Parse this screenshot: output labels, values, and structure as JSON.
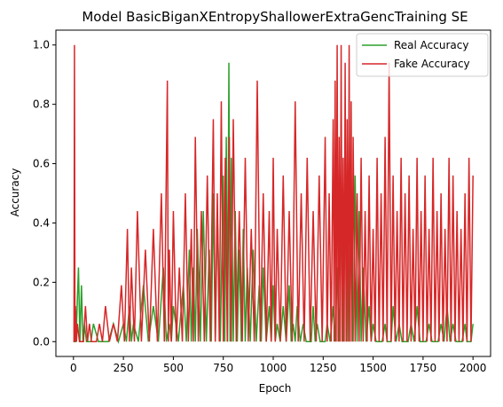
{
  "chart_data": {
    "type": "line",
    "title": "Model BasicBiganXEntropyShallowerExtraGencTraining SE",
    "xlabel": "Epoch",
    "ylabel": "Accuracy",
    "xlim": [
      -88,
      2088
    ],
    "ylim": [
      -0.05,
      1.05
    ],
    "xticks": [
      0,
      250,
      500,
      750,
      1000,
      1250,
      1500,
      1750,
      2000
    ],
    "yticks": [
      0.0,
      0.2,
      0.4,
      0.6,
      0.8,
      1.0
    ],
    "xtick_labels": [
      "0",
      "250",
      "500",
      "750",
      "1000",
      "1250",
      "1500",
      "1750",
      "2000"
    ],
    "ytick_labels": [
      "0.0",
      "0.2",
      "0.4",
      "0.6",
      "0.8",
      "1.0"
    ],
    "grid": false,
    "legend_position": "top-right",
    "series": [
      {
        "name": "Real Accuracy",
        "color": "#2ca02c",
        "x": [
          0,
          25,
          40,
          55,
          75,
          100,
          150,
          200,
          250,
          280,
          300,
          350,
          400,
          450,
          480,
          500,
          550,
          580,
          600,
          620,
          650,
          680,
          700,
          720,
          750,
          765,
          778,
          790,
          810,
          830,
          850,
          870,
          900,
          930,
          950,
          980,
          1000,
          1020,
          1050,
          1080,
          1100,
          1120,
          1150,
          1180,
          1200,
          1220,
          1250,
          1270,
          1300,
          1320,
          1340,
          1360,
          1375,
          1390,
          1410,
          1430,
          1450,
          1480,
          1500,
          1530,
          1560,
          1580,
          1600,
          1630,
          1660,
          1690,
          1720,
          1750,
          1780,
          1810,
          1840,
          1870,
          1900,
          1930,
          1960,
          1980,
          2000
        ],
        "y": [
          0.0,
          0.25,
          0.19,
          0.06,
          0.0,
          0.06,
          0.0,
          0.06,
          0.06,
          0.12,
          0.06,
          0.19,
          0.12,
          0.25,
          0.06,
          0.12,
          0.19,
          0.31,
          0.25,
          0.38,
          0.44,
          0.31,
          0.5,
          0.44,
          0.56,
          0.69,
          0.94,
          0.62,
          0.44,
          0.31,
          0.38,
          0.25,
          0.31,
          0.19,
          0.25,
          0.12,
          0.19,
          0.06,
          0.12,
          0.19,
          0.06,
          0.12,
          0.06,
          0.0,
          0.12,
          0.06,
          0.0,
          0.06,
          0.12,
          0.25,
          0.44,
          0.62,
          0.5,
          0.38,
          0.56,
          0.44,
          0.25,
          0.12,
          0.06,
          0.0,
          0.06,
          0.0,
          0.12,
          0.06,
          0.0,
          0.06,
          0.12,
          0.0,
          0.06,
          0.0,
          0.06,
          0.12,
          0.06,
          0.0,
          0.06,
          0.0,
          0.06
        ]
      },
      {
        "name": "Fake Accuracy",
        "color": "#d62728",
        "x": [
          0,
          5,
          10,
          20,
          40,
          60,
          80,
          100,
          130,
          160,
          200,
          240,
          270,
          290,
          320,
          360,
          400,
          440,
          470,
          480,
          500,
          530,
          560,
          590,
          610,
          640,
          670,
          700,
          720,
          740,
          760,
          780,
          800,
          830,
          860,
          890,
          920,
          950,
          980,
          1000,
          1020,
          1050,
          1080,
          1110,
          1140,
          1170,
          1200,
          1230,
          1260,
          1280,
          1300,
          1310,
          1320,
          1330,
          1340,
          1350,
          1360,
          1370,
          1380,
          1390,
          1400,
          1420,
          1440,
          1460,
          1480,
          1500,
          1520,
          1540,
          1560,
          1580,
          1600,
          1620,
          1640,
          1660,
          1680,
          1700,
          1720,
          1740,
          1760,
          1780,
          1800,
          1820,
          1840,
          1860,
          1880,
          1900,
          1920,
          1940,
          1960,
          1980,
          2000
        ],
        "y": [
          0.0,
          1.0,
          0.12,
          0.06,
          0.0,
          0.12,
          0.06,
          0.0,
          0.06,
          0.12,
          0.06,
          0.19,
          0.38,
          0.25,
          0.44,
          0.31,
          0.38,
          0.5,
          0.88,
          0.31,
          0.44,
          0.25,
          0.5,
          0.38,
          0.69,
          0.44,
          0.56,
          0.75,
          0.5,
          0.81,
          0.62,
          0.69,
          0.75,
          0.44,
          0.62,
          0.38,
          0.88,
          0.5,
          0.44,
          0.62,
          0.38,
          0.56,
          0.44,
          0.81,
          0.5,
          0.62,
          0.44,
          0.56,
          0.69,
          0.5,
          0.75,
          0.88,
          1.0,
          0.69,
          1.0,
          0.62,
          0.94,
          0.75,
          1.0,
          0.81,
          0.69,
          0.5,
          0.62,
          0.44,
          0.56,
          0.38,
          0.62,
          0.5,
          0.69,
          0.94,
          0.56,
          0.44,
          0.62,
          0.5,
          0.56,
          0.38,
          0.62,
          0.44,
          0.56,
          0.38,
          0.62,
          0.44,
          0.5,
          0.38,
          0.62,
          0.56,
          0.44,
          0.38,
          0.5,
          0.62,
          0.56
        ]
      }
    ]
  }
}
